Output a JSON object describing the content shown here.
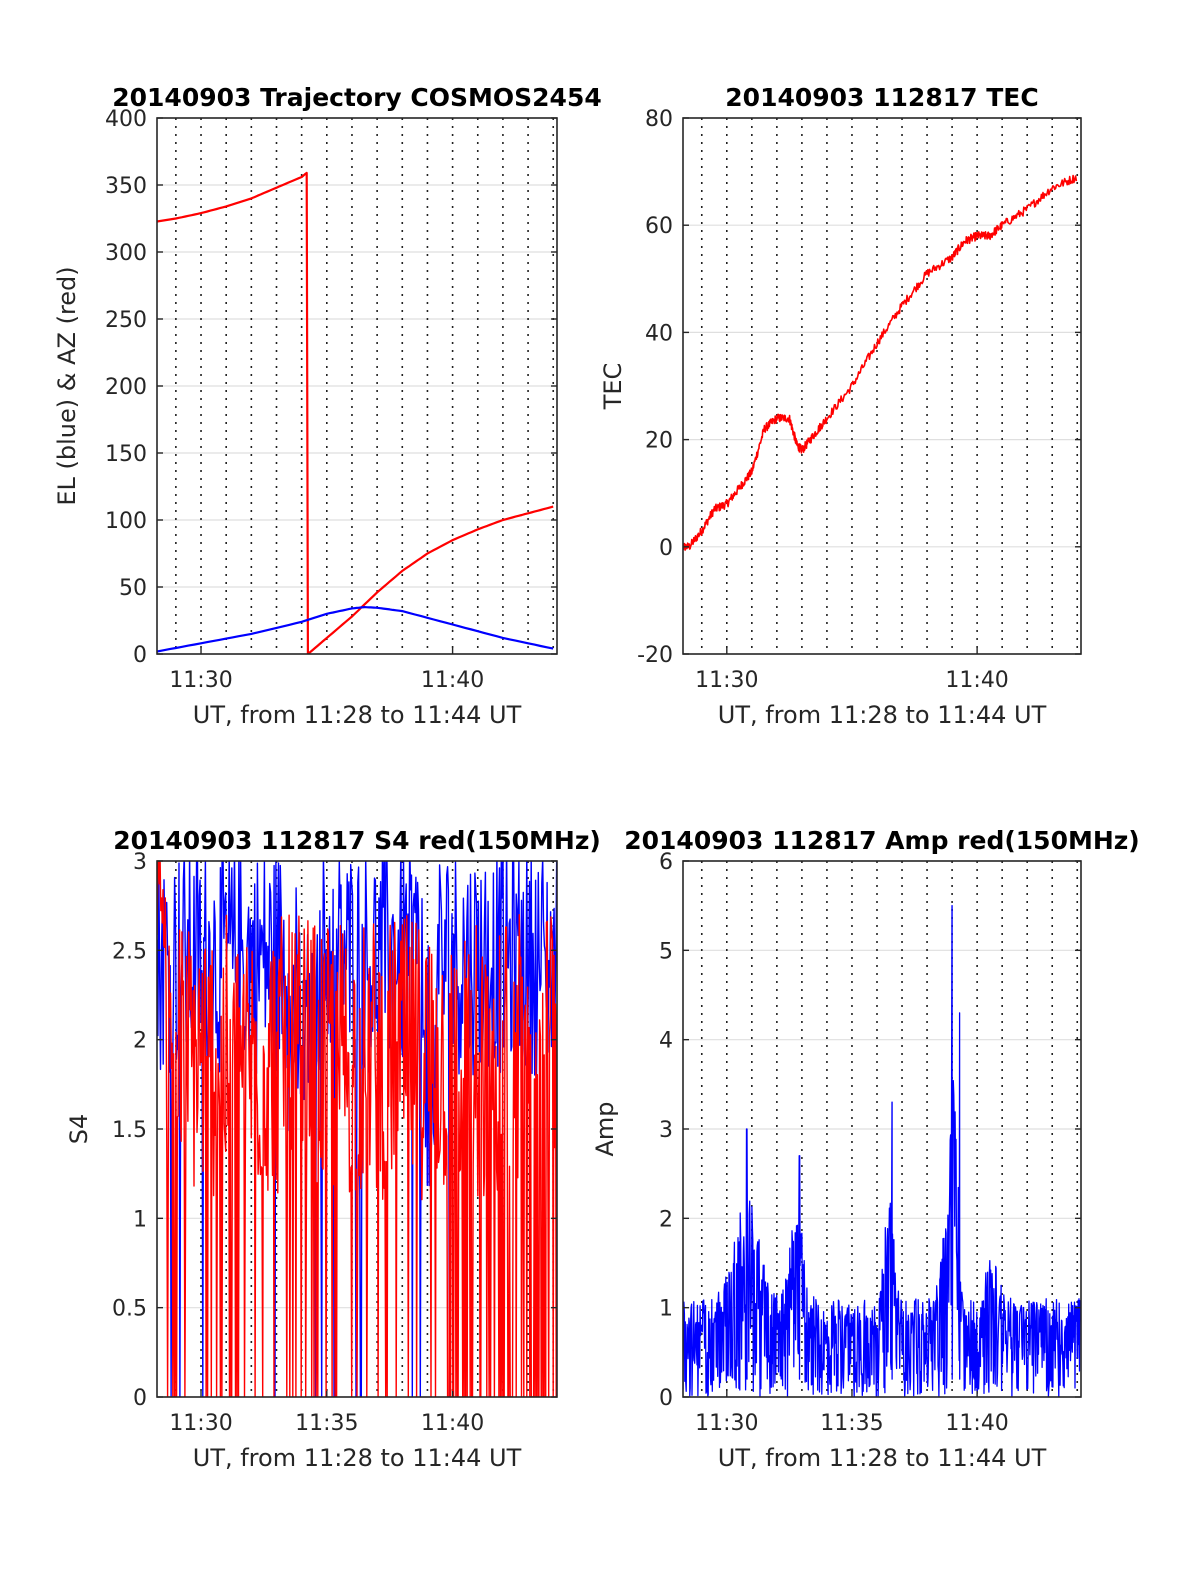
{
  "chart_data": [
    {
      "type": "line",
      "title": "20140903 Trajectory COSMOS2454",
      "xlabel": "UT, from 11:28 to 11:44 UT",
      "ylabel": "EL (blue) & AZ (red)",
      "xlim": [
        "11:28",
        "11:44"
      ],
      "ylim": [
        0,
        400
      ],
      "xticks": [
        "11:30",
        "11:40"
      ],
      "yticks": [
        0,
        50,
        100,
        150,
        200,
        250,
        300,
        350,
        400
      ],
      "grid": "dotted vertical every minute; light horizontal at y ticks",
      "series": [
        {
          "color": "#ff0000",
          "x": [
            "11:28",
            "11:29",
            "11:30",
            "11:31",
            "11:32",
            "11:33",
            "11:34",
            "11:34.2",
            "11:34.25",
            "11:35",
            "11:36",
            "11:37",
            "11:38",
            "11:39",
            "11:40",
            "11:41",
            "11:42",
            "11:43",
            "11:44"
          ],
          "values": [
            322,
            325,
            329,
            334,
            340,
            348,
            356,
            359,
            0,
            12,
            28,
            46,
            62,
            75,
            85,
            93,
            100,
            105,
            110
          ]
        },
        {
          "color": "#0000ff",
          "x": [
            "11:28",
            "11:30",
            "11:32",
            "11:34",
            "11:35",
            "11:36",
            "11:36.5",
            "11:37",
            "11:38",
            "11:40",
            "11:42",
            "11:44"
          ],
          "values": [
            1,
            8,
            15,
            24,
            30,
            34,
            35,
            34.5,
            32,
            22,
            12,
            4
          ]
        }
      ]
    },
    {
      "type": "line",
      "title": "20140903 112817 TEC",
      "xlabel": "UT, from 11:28 to 11:44 UT",
      "ylabel": "TEC",
      "xlim": [
        "11:28",
        "11:44"
      ],
      "ylim": [
        -20,
        80
      ],
      "xticks": [
        "11:30",
        "11:40"
      ],
      "yticks": [
        -20,
        0,
        20,
        40,
        60,
        80
      ],
      "grid": "dotted vertical every minute; light horizontal at y ticks",
      "series": [
        {
          "color": "#ff0000",
          "x": [
            "11:28",
            "11:28.5",
            "11:29",
            "11:29.5",
            "11:30",
            "11:30.5",
            "11:31",
            "11:31.5",
            "11:32",
            "11:32.5",
            "11:32.8",
            "11:33",
            "11:33.5",
            "11:34",
            "11:35",
            "11:36",
            "11:37",
            "11:38",
            "11:39",
            "11:39.5",
            "11:40",
            "11:40.5",
            "11:41",
            "11:42",
            "11:43",
            "11:44"
          ],
          "values": [
            0,
            0,
            3,
            7,
            8,
            11,
            14,
            22,
            24,
            24,
            19,
            18,
            21,
            24,
            30,
            38,
            45,
            51,
            54,
            57,
            58,
            58,
            60,
            63,
            67,
            69
          ]
        }
      ]
    },
    {
      "type": "line",
      "title": "20140903 112817 S4 red(150MHz)",
      "xlabel": "UT, from 11:28 to 11:44 UT",
      "ylabel": "S4",
      "xlim": [
        "11:28",
        "11:44"
      ],
      "ylim": [
        0,
        3
      ],
      "xticks": [
        "11:30",
        "11:35",
        "11:40"
      ],
      "yticks": [
        0,
        0.5,
        1,
        1.5,
        2,
        2.5,
        3
      ],
      "grid": "dotted vertical every minute; light horizontal at y ticks",
      "series": [
        {
          "color": "#0000ff",
          "description_values": "noisy, mostly 1.5-3, dips to ~1 near 11:34 and 11:39"
        },
        {
          "color": "#ff0000",
          "description_values": "noisy, frequent drops to 0, mostly 1.5-3"
        }
      ]
    },
    {
      "type": "line",
      "title": "20140903 112817 Amp red(150MHz)",
      "xlabel": "UT, from 11:28 to 11:44 UT",
      "ylabel": "Amp",
      "xlim": [
        "11:28",
        "11:44"
      ],
      "ylim": [
        0,
        6
      ],
      "xticks": [
        "11:30",
        "11:35",
        "11:40"
      ],
      "yticks": [
        0,
        1,
        2,
        3,
        4,
        5,
        6
      ],
      "grid": "dotted vertical every minute; light horizontal at y ticks",
      "series": [
        {
          "color": "#0000ff",
          "peaks": [
            {
              "x": "11:30.8",
              "value": 3.0
            },
            {
              "x": "11:32.9",
              "value": 2.7
            },
            {
              "x": "11:36.6",
              "value": 3.3
            },
            {
              "x": "11:39.0",
              "value": 5.5
            },
            {
              "x": "11:39.3",
              "value": 4.3
            }
          ],
          "baseline_range": [
            0,
            1.3
          ]
        }
      ]
    }
  ]
}
